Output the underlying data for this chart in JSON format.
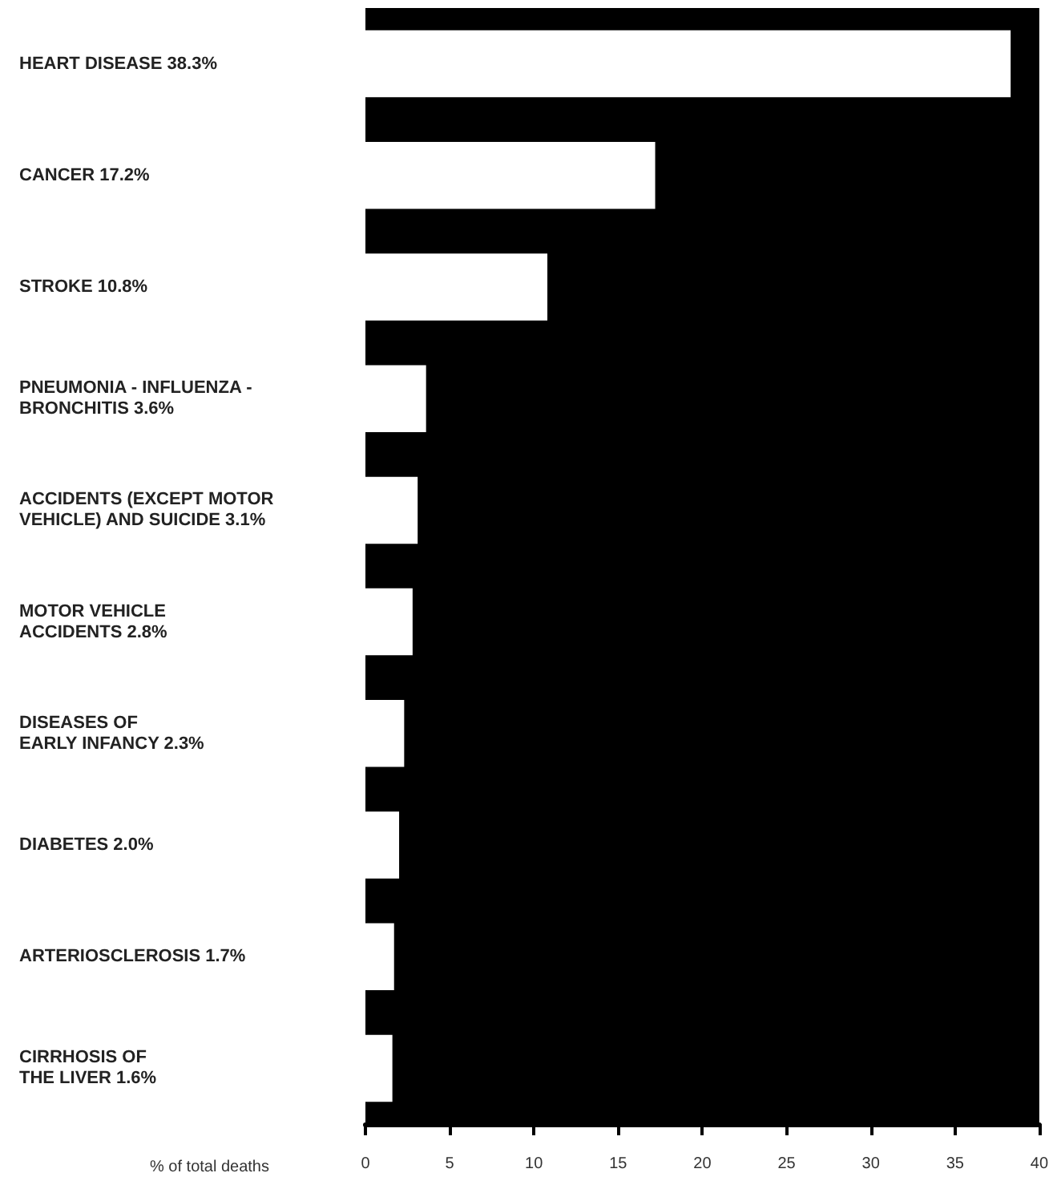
{
  "chart_data": {
    "type": "bar",
    "orientation": "horizontal",
    "xlabel": "% of total deaths",
    "categories": [
      "HEART DISEASE 38.3%",
      "CANCER 17.2%",
      "STROKE 10.8%",
      "PNEUMONIA - INFLUENZA -\nBRONCHITIS 3.6%",
      "ACCIDENTS (EXCEPT MOTOR\nVEHICLE) AND SUICIDE 3.1%",
      "MOTOR VEHICLE\nACCIDENTS 2.8%",
      "DISEASES OF\nEARLY INFANCY 2.3%",
      "DIABETES 2.0%",
      "ARTERIOSCLEROSIS 1.7%",
      "CIRRHOSIS OF\nTHE LIVER 1.6%"
    ],
    "values": [
      38.3,
      17.2,
      10.8,
      3.6,
      3.1,
      2.8,
      2.3,
      2.0,
      1.7,
      1.6
    ],
    "color": "#ffffff",
    "xlim": [
      0,
      40
    ],
    "xticks": [
      0,
      5,
      10,
      15,
      20,
      25,
      30,
      35,
      40
    ]
  }
}
